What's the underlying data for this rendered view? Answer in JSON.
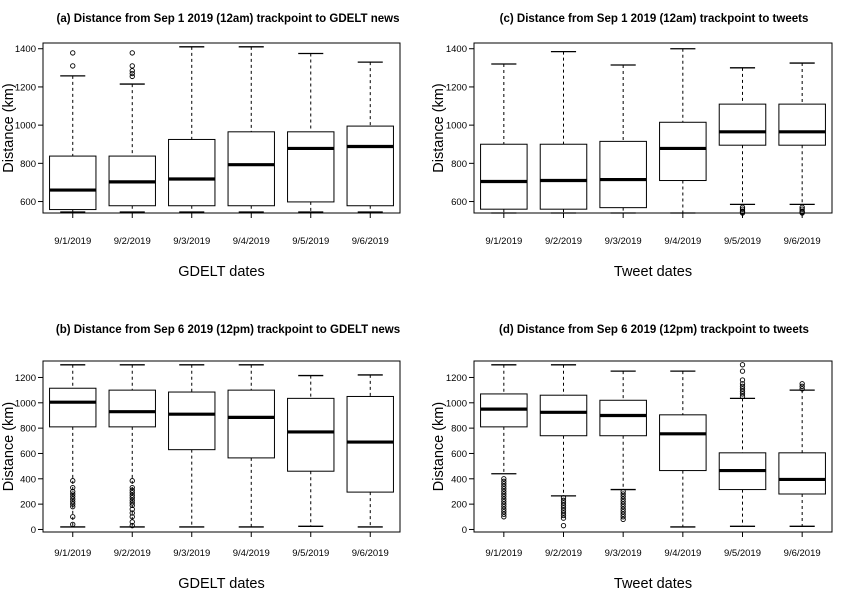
{
  "chart_data": [
    {
      "type": "box",
      "title": "(a) Distance from Sep 1 2019 (12am) trackpoint to GDELT news",
      "xlabel": "GDELT dates",
      "ylabel": "Distance (km)",
      "ylim": [
        540,
        1430
      ],
      "yticks": [
        600,
        800,
        1000,
        1200,
        1400
      ],
      "categories": [
        "9/1/2019",
        "9/2/2019",
        "9/3/2019",
        "9/4/2019",
        "9/5/2019",
        "9/6/2019"
      ],
      "boxes": [
        {
          "min": 545,
          "q1": 558,
          "median": 660,
          "q3": 838,
          "max": 1258,
          "outliers": [
            1310,
            1378
          ]
        },
        {
          "min": 545,
          "q1": 578,
          "median": 703,
          "q3": 838,
          "max": 1215,
          "outliers": [
            1255,
            1270,
            1285,
            1310,
            1378
          ]
        },
        {
          "min": 545,
          "q1": 578,
          "median": 718,
          "q3": 925,
          "max": 1410,
          "outliers": []
        },
        {
          "min": 545,
          "q1": 578,
          "median": 793,
          "q3": 965,
          "max": 1410,
          "outliers": []
        },
        {
          "min": 545,
          "q1": 598,
          "median": 878,
          "q3": 965,
          "max": 1375,
          "outliers": []
        },
        {
          "min": 545,
          "q1": 578,
          "median": 888,
          "q3": 995,
          "max": 1330,
          "outliers": []
        }
      ]
    },
    {
      "type": "box",
      "title": "(c) Distance from Sep 1 2019 (12am) trackpoint to tweets",
      "xlabel": "Tweet dates",
      "ylabel": "Distance (km)",
      "ylim": [
        540,
        1430
      ],
      "yticks": [
        600,
        800,
        1000,
        1200,
        1400
      ],
      "categories": [
        "9/1/2019",
        "9/2/2019",
        "9/3/2019",
        "9/4/2019",
        "9/5/2019",
        "9/6/2019"
      ],
      "boxes": [
        {
          "min": 540,
          "q1": 560,
          "median": 705,
          "q3": 900,
          "max": 1320,
          "outliers": []
        },
        {
          "min": 540,
          "q1": 560,
          "median": 710,
          "q3": 900,
          "max": 1385,
          "outliers": []
        },
        {
          "min": 540,
          "q1": 568,
          "median": 715,
          "q3": 915,
          "max": 1315,
          "outliers": []
        },
        {
          "min": 540,
          "q1": 710,
          "median": 878,
          "q3": 1015,
          "max": 1400,
          "outliers": []
        },
        {
          "min": 585,
          "q1": 895,
          "median": 965,
          "q3": 1110,
          "max": 1300,
          "outliers": [
            570,
            560,
            550,
            545,
            540
          ]
        },
        {
          "min": 585,
          "q1": 895,
          "median": 965,
          "q3": 1110,
          "max": 1325,
          "outliers": [
            570,
            560,
            550,
            545,
            540
          ]
        }
      ]
    },
    {
      "type": "box",
      "title": "(b) Distance from Sep 6 2019 (12pm) trackpoint to GDELT news",
      "xlabel": "GDELT dates",
      "ylabel": "Distance (km)",
      "ylim": [
        -20,
        1330
      ],
      "yticks": [
        0,
        200,
        400,
        600,
        800,
        1000,
        1200
      ],
      "categories": [
        "9/1/2019",
        "9/2/2019",
        "9/3/2019",
        "9/4/2019",
        "9/5/2019",
        "9/6/2019"
      ],
      "boxes": [
        {
          "min": 20,
          "q1": 810,
          "median": 1005,
          "q3": 1115,
          "max": 1300,
          "outliers": [
            385,
            330,
            300,
            280,
            260,
            240,
            220,
            200,
            180,
            100,
            40
          ]
        },
        {
          "min": 20,
          "q1": 810,
          "median": 930,
          "q3": 1100,
          "max": 1300,
          "outliers": [
            385,
            330,
            310,
            290,
            270,
            250,
            230,
            210,
            190,
            160,
            130,
            100,
            60,
            30
          ]
        },
        {
          "min": 20,
          "q1": 630,
          "median": 910,
          "q3": 1085,
          "max": 1300,
          "outliers": []
        },
        {
          "min": 20,
          "q1": 565,
          "median": 885,
          "q3": 1100,
          "max": 1300,
          "outliers": []
        },
        {
          "min": 25,
          "q1": 460,
          "median": 770,
          "q3": 1035,
          "max": 1215,
          "outliers": []
        },
        {
          "min": 20,
          "q1": 295,
          "median": 690,
          "q3": 1050,
          "max": 1220,
          "outliers": []
        }
      ]
    },
    {
      "type": "box",
      "title": "(d) Distance from Sep 6 2019 (12pm) trackpoint to tweets",
      "xlabel": "Tweet dates",
      "ylabel": "Distance (km)",
      "ylim": [
        -20,
        1330
      ],
      "yticks": [
        0,
        200,
        400,
        600,
        800,
        1000,
        1200
      ],
      "categories": [
        "9/1/2019",
        "9/2/2019",
        "9/3/2019",
        "9/4/2019",
        "9/5/2019",
        "9/6/2019"
      ],
      "boxes": [
        {
          "min": 440,
          "q1": 810,
          "median": 950,
          "q3": 1070,
          "max": 1300,
          "outliers": [
            400,
            380,
            360,
            340,
            320,
            300,
            280,
            260,
            240,
            220,
            200,
            180,
            160,
            140,
            120,
            100
          ]
        },
        {
          "min": 265,
          "q1": 740,
          "median": 925,
          "q3": 1060,
          "max": 1300,
          "outliers": [
            250,
            230,
            210,
            190,
            170,
            150,
            130,
            110,
            90,
            30
          ]
        },
        {
          "min": 315,
          "q1": 740,
          "median": 900,
          "q3": 1020,
          "max": 1250,
          "outliers": [
            300,
            280,
            260,
            240,
            220,
            200,
            180,
            160,
            140,
            120,
            100,
            80
          ]
        },
        {
          "min": 20,
          "q1": 465,
          "median": 755,
          "q3": 905,
          "max": 1250,
          "outliers": []
        },
        {
          "min": 25,
          "q1": 315,
          "median": 465,
          "q3": 605,
          "max": 1035,
          "outliers": [
            1050,
            1070,
            1090,
            1110,
            1130,
            1150,
            1180,
            1250,
            1300
          ]
        },
        {
          "min": 25,
          "q1": 280,
          "median": 395,
          "q3": 605,
          "max": 1100,
          "outliers": [
            1110,
            1130,
            1150
          ]
        }
      ]
    }
  ]
}
